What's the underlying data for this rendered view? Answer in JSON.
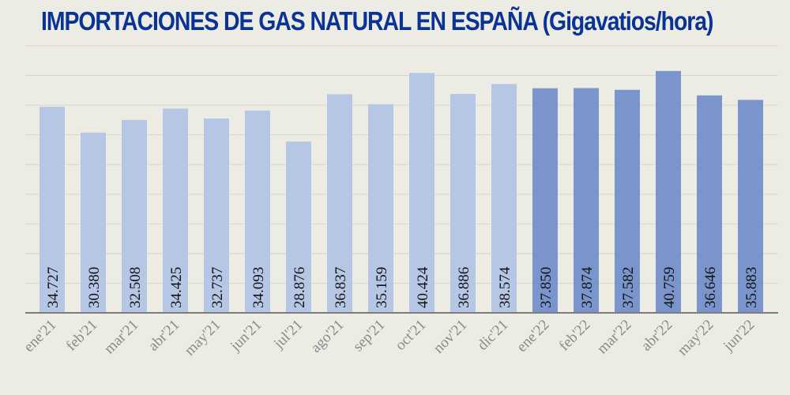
{
  "chart_data": {
    "type": "bar",
    "title": "IMPORTACIONES DE GAS NATURAL EN ESPAÑA (Gigavatios/hora)",
    "xlabel": "",
    "ylabel": "",
    "ylim": [
      0,
      45000
    ],
    "grid_step": 5000,
    "grid": true,
    "categories": [
      "ene'21",
      "feb'21",
      "mar'21",
      "abr'21",
      "may'21",
      "jun'21",
      "jul'21",
      "ago'21",
      "sep'21",
      "oct'21",
      "nov'21",
      "dic'21",
      "ene'22",
      "feb'22",
      "mar'22",
      "abr'22",
      "may'22",
      "jun'22"
    ],
    "values": [
      34727,
      30380,
      32508,
      34425,
      32737,
      34093,
      28876,
      36837,
      35159,
      40424,
      36886,
      38574,
      37850,
      37874,
      37582,
      40759,
      36646,
      35883
    ],
    "labels": [
      "34.727",
      "30.380",
      "32.508",
      "34.425",
      "32.737",
      "34.093",
      "28.876",
      "36.837",
      "35.159",
      "40.424",
      "36.886",
      "38.574",
      "37.850",
      "37.874",
      "37.582",
      "40.759",
      "36.646",
      "35.883"
    ],
    "year_group": [
      "2021",
      "2021",
      "2021",
      "2021",
      "2021",
      "2021",
      "2021",
      "2021",
      "2021",
      "2021",
      "2021",
      "2021",
      "2022",
      "2022",
      "2022",
      "2022",
      "2022",
      "2022"
    ]
  },
  "colors": {
    "background": "#edece4",
    "bar_2021": "#b6c6e5",
    "bar_2022": "#7a94cc",
    "title": "#0a3494",
    "grid": "#d6d5cc",
    "axis": "#7d7d7d",
    "tick_label": "#8a8a8a",
    "data_label": "#111111"
  }
}
